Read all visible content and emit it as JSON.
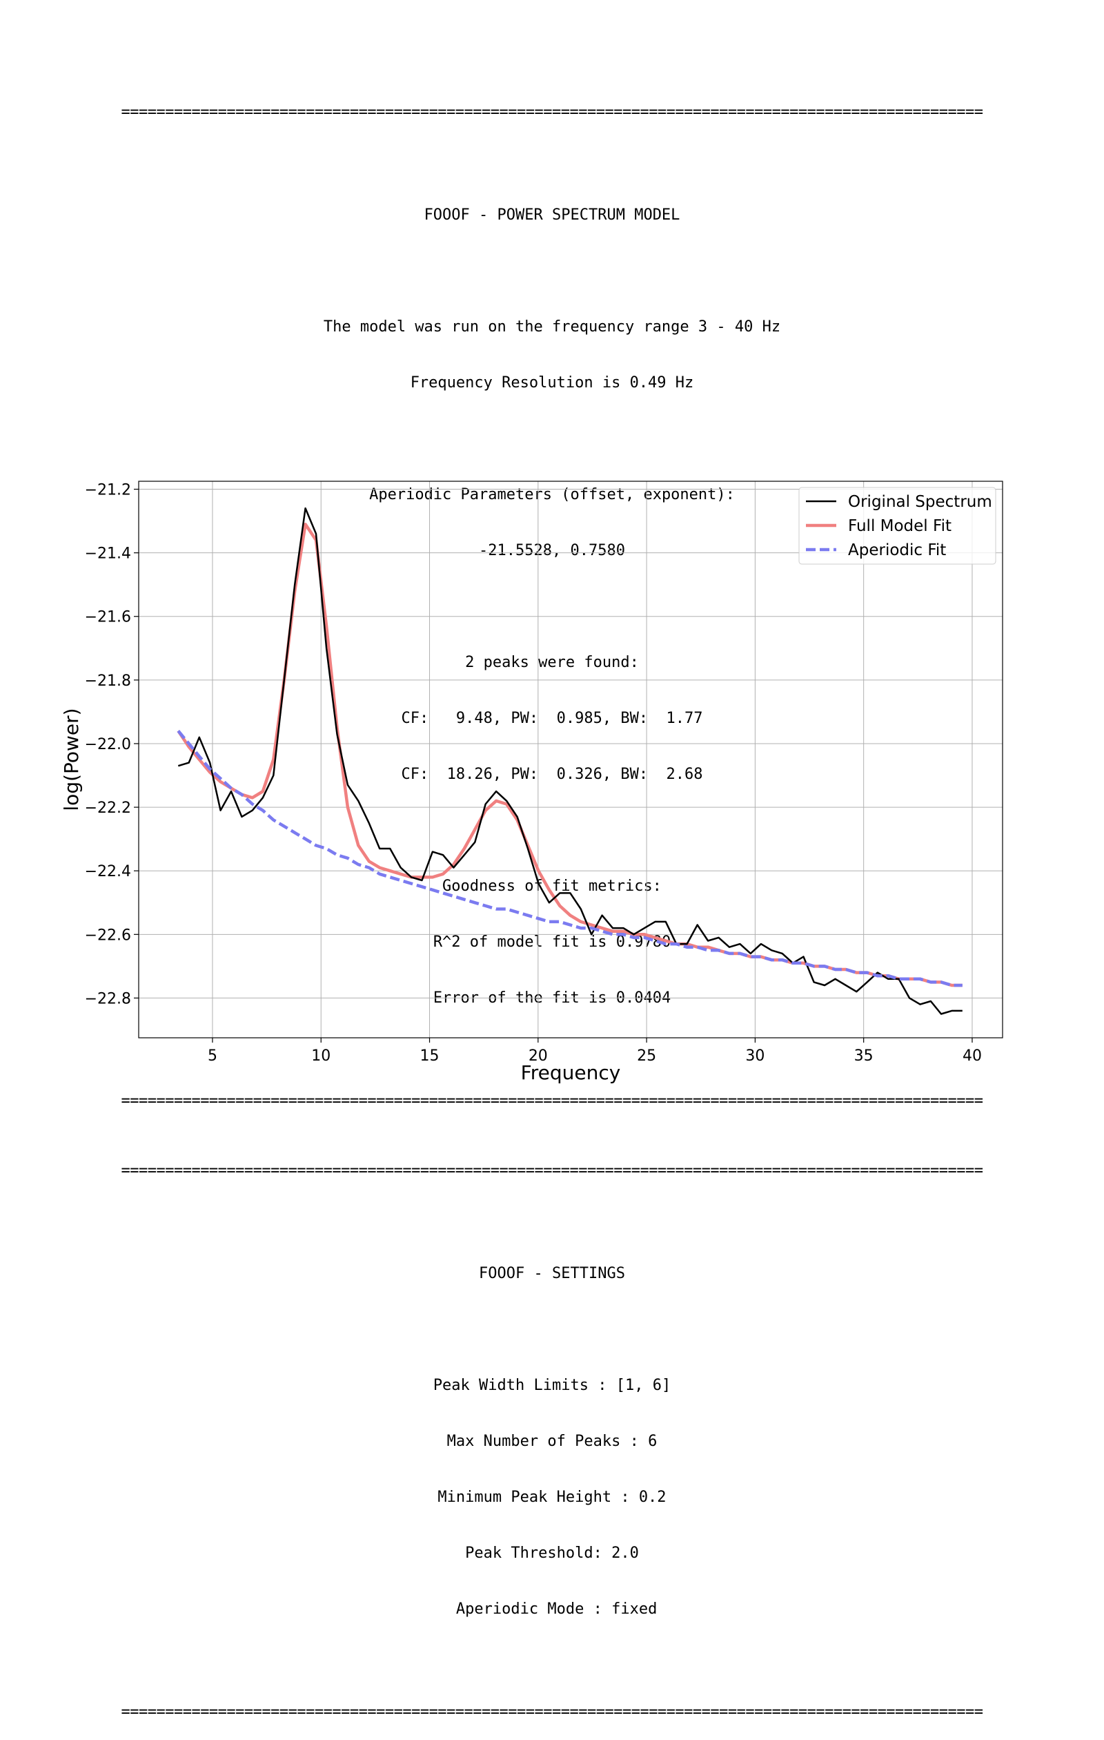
{
  "report_top": {
    "separator": "==================================================================================================",
    "lines": [
      "FOOOF - POWER SPECTRUM MODEL",
      "",
      "The model was run on the frequency range 3 - 40 Hz",
      "Frequency Resolution is 0.49 Hz",
      "",
      "Aperiodic Parameters (offset, exponent):",
      "-21.5528, 0.7580",
      "",
      "2 peaks were found:",
      "CF:   9.48, PW:  0.985, BW:  1.77",
      "CF:  18.26, PW:  0.326, BW:  2.68",
      "",
      "Goodness of fit metrics:",
      "R^2 of model fit is 0.9780",
      "Error of the fit is 0.0404"
    ]
  },
  "report_bottom": {
    "separator": "==================================================================================================",
    "lines": [
      "FOOOF - SETTINGS",
      "",
      "Peak Width Limits : [1, 6]",
      "Max Number of Peaks : 6",
      "Minimum Peak Height : 0.2",
      "Peak Threshold: 2.0",
      " Aperiodic Mode : fixed"
    ]
  },
  "chart_data": {
    "type": "line",
    "title": "",
    "xlabel": "Frequency",
    "ylabel": "log(Power)",
    "xlim": [
      1.6,
      41.4
    ],
    "ylim": [
      -22.925,
      -21.175
    ],
    "xticks": [
      5,
      10,
      15,
      20,
      25,
      30,
      35,
      40
    ],
    "yticks": [
      -21.2,
      -21.4,
      -21.6,
      -21.8,
      -22.0,
      -22.2,
      -22.4,
      -22.6,
      -22.8
    ],
    "ytick_labels": [
      "−21.2",
      "−21.4",
      "−21.6",
      "−21.8",
      "−22.0",
      "−22.2",
      "−22.4",
      "−22.6",
      "−22.8"
    ],
    "grid": true,
    "legend_position": "top-right",
    "x": [
      3.42,
      3.91,
      4.39,
      4.88,
      5.37,
      5.86,
      6.35,
      6.84,
      7.32,
      7.81,
      8.3,
      8.79,
      9.28,
      9.77,
      10.25,
      10.74,
      11.23,
      11.72,
      12.21,
      12.7,
      13.18,
      13.67,
      14.16,
      14.65,
      15.14,
      15.62,
      16.11,
      16.6,
      17.09,
      17.58,
      18.07,
      18.55,
      19.04,
      19.53,
      20.02,
      20.51,
      21.0,
      21.48,
      21.97,
      22.46,
      22.95,
      23.44,
      23.93,
      24.41,
      24.9,
      25.39,
      25.88,
      26.37,
      26.86,
      27.34,
      27.83,
      28.32,
      28.81,
      29.3,
      29.79,
      30.27,
      30.76,
      31.25,
      31.74,
      32.23,
      32.71,
      33.2,
      33.69,
      34.18,
      34.67,
      35.16,
      35.64,
      36.13,
      36.62,
      37.11,
      37.6,
      38.09,
      38.57,
      39.06,
      39.55
    ],
    "series": [
      {
        "name": "Original Spectrum",
        "color": "#000000",
        "dash": "solid",
        "values": [
          -22.07,
          -22.06,
          -21.98,
          -22.06,
          -22.21,
          -22.15,
          -22.23,
          -22.21,
          -22.17,
          -22.1,
          -21.8,
          -21.5,
          -21.26,
          -21.34,
          -21.7,
          -21.97,
          -22.13,
          -22.18,
          -22.25,
          -22.33,
          -22.33,
          -22.39,
          -22.42,
          -22.43,
          -22.34,
          -22.35,
          -22.39,
          -22.35,
          -22.31,
          -22.19,
          -22.15,
          -22.18,
          -22.23,
          -22.33,
          -22.44,
          -22.5,
          -22.47,
          -22.47,
          -22.52,
          -22.6,
          -22.54,
          -22.58,
          -22.58,
          -22.6,
          -22.58,
          -22.56,
          -22.56,
          -22.63,
          -22.63,
          -22.57,
          -22.62,
          -22.61,
          -22.64,
          -22.63,
          -22.66,
          -22.63,
          -22.65,
          -22.66,
          -22.69,
          -22.67,
          -22.75,
          -22.76,
          -22.74,
          -22.76,
          -22.78,
          -22.75,
          -22.72,
          -22.74,
          -22.74,
          -22.8,
          -22.82,
          -22.81,
          -22.85,
          -22.84,
          -22.84
        ]
      },
      {
        "name": "Full Model Fit",
        "color": "#f08080",
        "dash": "solid",
        "values": [
          -21.96,
          -22.01,
          -22.05,
          -22.09,
          -22.12,
          -22.14,
          -22.16,
          -22.17,
          -22.15,
          -22.05,
          -21.8,
          -21.52,
          -21.31,
          -21.36,
          -21.63,
          -21.95,
          -22.2,
          -22.32,
          -22.37,
          -22.39,
          -22.4,
          -22.41,
          -22.42,
          -22.42,
          -22.42,
          -22.41,
          -22.38,
          -22.33,
          -22.27,
          -22.21,
          -22.18,
          -22.19,
          -22.24,
          -22.32,
          -22.4,
          -22.46,
          -22.51,
          -22.54,
          -22.56,
          -22.57,
          -22.58,
          -22.59,
          -22.59,
          -22.6,
          -22.6,
          -22.61,
          -22.62,
          -22.63,
          -22.63,
          -22.64,
          -22.64,
          -22.65,
          -22.66,
          -22.66,
          -22.67,
          -22.67,
          -22.68,
          -22.68,
          -22.69,
          -22.69,
          -22.7,
          -22.7,
          -22.71,
          -22.71,
          -22.72,
          -22.72,
          -22.73,
          -22.73,
          -22.74,
          -22.74,
          -22.74,
          -22.75,
          -22.75,
          -22.76,
          -22.76
        ]
      },
      {
        "name": "Aperiodic Fit",
        "color": "#7b7bf0",
        "dash": "dashed",
        "values": [
          -21.96,
          -22.0,
          -22.04,
          -22.08,
          -22.11,
          -22.14,
          -22.16,
          -22.19,
          -22.21,
          -22.24,
          -22.26,
          -22.28,
          -22.3,
          -22.32,
          -22.33,
          -22.35,
          -22.36,
          -22.38,
          -22.39,
          -22.41,
          -22.42,
          -22.43,
          -22.44,
          -22.45,
          -22.46,
          -22.47,
          -22.48,
          -22.49,
          -22.5,
          -22.51,
          -22.52,
          -22.52,
          -22.53,
          -22.54,
          -22.55,
          -22.56,
          -22.56,
          -22.57,
          -22.58,
          -22.58,
          -22.59,
          -22.6,
          -22.6,
          -22.61,
          -22.61,
          -22.62,
          -22.63,
          -22.63,
          -22.64,
          -22.64,
          -22.65,
          -22.65,
          -22.66,
          -22.66,
          -22.67,
          -22.67,
          -22.68,
          -22.68,
          -22.69,
          -22.69,
          -22.7,
          -22.7,
          -22.71,
          -22.71,
          -22.72,
          -22.72,
          -22.73,
          -22.73,
          -22.74,
          -22.74,
          -22.74,
          -22.75,
          -22.75,
          -22.76,
          -22.76
        ]
      }
    ]
  }
}
